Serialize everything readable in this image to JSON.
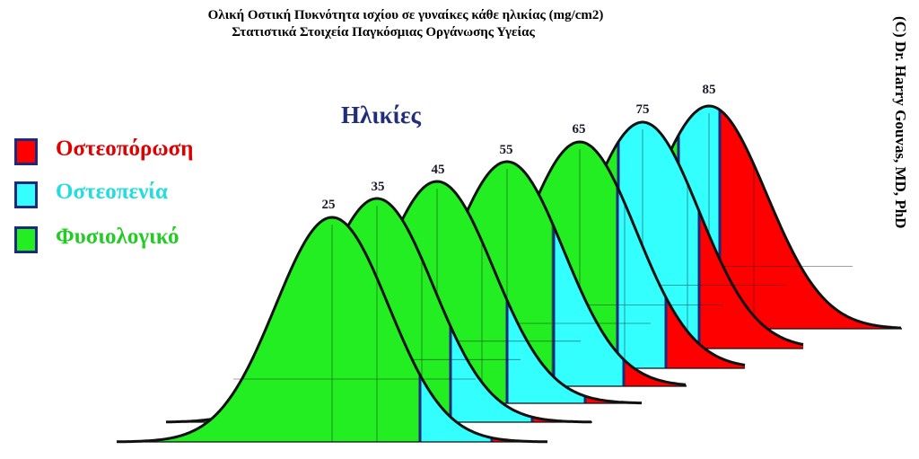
{
  "title": {
    "line1": "Ολική Οστική Πυκνότητα ισχίου σε γυναίκες κάθε ηλικίας (mg/cm2)",
    "line2": "Στατιστικά Στοιχεία Παγκόσμιας Οργάνωσης Υγείας"
  },
  "ages_heading": "Ηλικίες",
  "credit": "(C) Dr. Harry Gouvas, MD, PhD",
  "legend": [
    {
      "label": "Οστεοπόρωση",
      "color": "#ff0000"
    },
    {
      "label": "Οστεοπενία",
      "color": "#33ffff"
    },
    {
      "label": "Φυσιολογικό",
      "color": "#22ee22"
    }
  ],
  "colors": {
    "normal": "#22ee22",
    "osteopenia": "#33ffff",
    "osteoporosis": "#ff0000",
    "outline": "#111111",
    "threshold_line": "#1b2a7a",
    "label_text": "#1a1a2e",
    "heading_text": "#1f2d7a",
    "osteoporosis_text": "#e00000",
    "osteopenia_text": "#22dddd",
    "normal_text": "#22cc22"
  },
  "age_groups": [
    "25",
    "35",
    "45",
    "55",
    "65",
    "75",
    "85"
  ]
}
